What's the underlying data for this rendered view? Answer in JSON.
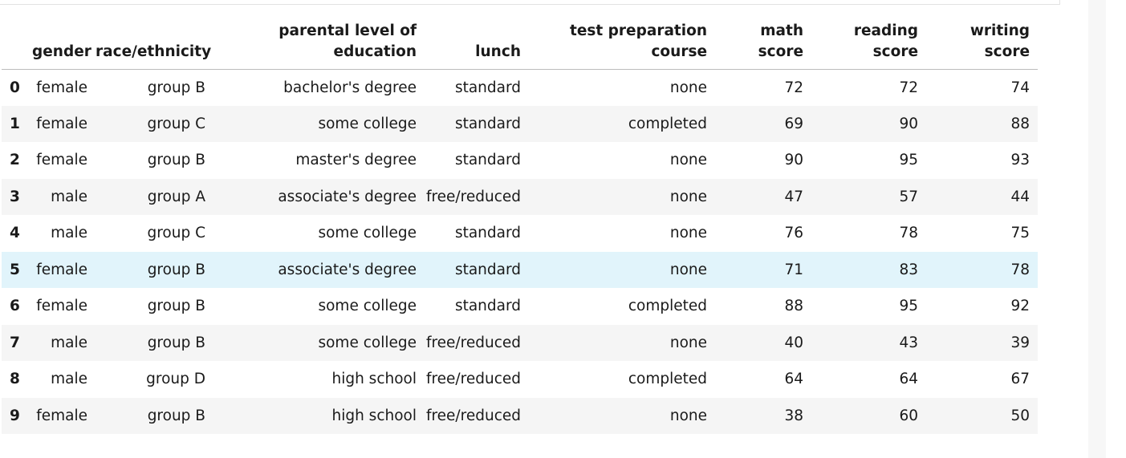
{
  "table": {
    "columns": [
      "",
      "gender",
      "race/ethnicity",
      "parental level of\neducation",
      "lunch",
      "test preparation\ncourse",
      "math\nscore",
      "reading\nscore",
      "writing\nscore"
    ],
    "rows": [
      {
        "index": "0",
        "cells": [
          "female",
          "group B",
          "bachelor's degree",
          "standard",
          "none",
          "72",
          "72",
          "74"
        ]
      },
      {
        "index": "1",
        "cells": [
          "female",
          "group C",
          "some college",
          "standard",
          "completed",
          "69",
          "90",
          "88"
        ]
      },
      {
        "index": "2",
        "cells": [
          "female",
          "group B",
          "master's degree",
          "standard",
          "none",
          "90",
          "95",
          "93"
        ]
      },
      {
        "index": "3",
        "cells": [
          "male",
          "group A",
          "associate's degree",
          "free/reduced",
          "none",
          "47",
          "57",
          "44"
        ]
      },
      {
        "index": "4",
        "cells": [
          "male",
          "group C",
          "some college",
          "standard",
          "none",
          "76",
          "78",
          "75"
        ]
      },
      {
        "index": "5",
        "cells": [
          "female",
          "group B",
          "associate's degree",
          "standard",
          "none",
          "71",
          "83",
          "78"
        ]
      },
      {
        "index": "6",
        "cells": [
          "female",
          "group B",
          "some college",
          "standard",
          "completed",
          "88",
          "95",
          "92"
        ]
      },
      {
        "index": "7",
        "cells": [
          "male",
          "group B",
          "some college",
          "free/reduced",
          "none",
          "40",
          "43",
          "39"
        ]
      },
      {
        "index": "8",
        "cells": [
          "male",
          "group D",
          "high school",
          "free/reduced",
          "completed",
          "64",
          "64",
          "67"
        ]
      },
      {
        "index": "9",
        "cells": [
          "female",
          "group B",
          "high school",
          "free/reduced",
          "none",
          "38",
          "60",
          "50"
        ]
      }
    ],
    "hovered_row": 5
  }
}
